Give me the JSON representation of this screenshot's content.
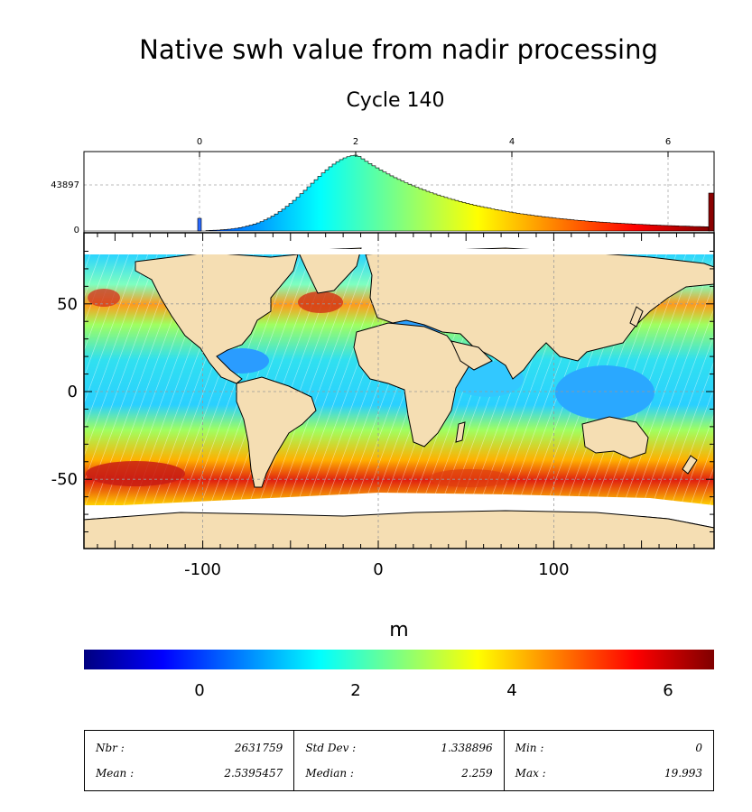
{
  "figure": {
    "title": "Native swh value from nadir processing",
    "subtitle": "Cycle 140"
  },
  "histogram": {
    "x_ticks": [
      "0",
      "2",
      "4",
      "6"
    ],
    "y_ticks": [
      "43897",
      "0"
    ]
  },
  "map": {
    "x_ticks": [
      "-100",
      "0",
      "100"
    ],
    "y_ticks": [
      "50",
      "0",
      "-50"
    ],
    "land_color": "#f5deb3",
    "ocean_empty_color": "#ffffff"
  },
  "colorbar": {
    "unit_label": "m",
    "ticks": [
      "0",
      "2",
      "4",
      "6"
    ],
    "colormap": "jet",
    "range": [
      -1.5,
      6.5
    ]
  },
  "stats": {
    "nbr_label": "Nbr :",
    "nbr_value": "2631759",
    "mean_label": "Mean :",
    "mean_value": "2.5395457",
    "std_label": "Std Dev :",
    "std_value": "1.338896",
    "median_label": "Median :",
    "median_value": "2.259",
    "min_label": "Min :",
    "min_value": "0",
    "max_label": "Max :",
    "max_value": "19.993"
  }
}
